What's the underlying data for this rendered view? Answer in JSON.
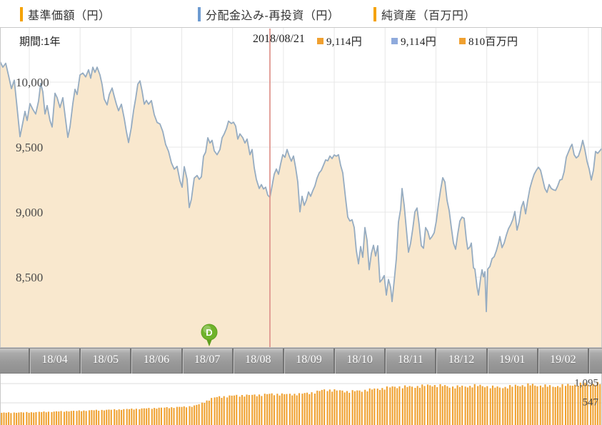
{
  "legend": {
    "items": [
      {
        "label": "基準価額（円）",
        "color": "#F5A200",
        "x": 28
      },
      {
        "label": "分配金込み-再投資（円）",
        "color": "#6D9BD1",
        "x": 277
      },
      {
        "label": "純資産（百万円）",
        "color": "#F5A200",
        "x": 523
      }
    ]
  },
  "header": {
    "period_label": "期間:1年",
    "crosshair_date": "2018/08/21",
    "tooltip_values": [
      {
        "text": "9,114円",
        "color": "#F0A030",
        "x": 444
      },
      {
        "text": "9,114円",
        "color": "#8FAADC",
        "x": 548
      },
      {
        "text": "810百万円",
        "color": "#F0A030",
        "x": 643
      }
    ]
  },
  "colors": {
    "area_fill": "#F9E8CE",
    "line": "#96ACC1",
    "crosshair": "#E09790",
    "grid": "#E7E7E7",
    "panel_border": "#C9C9C9",
    "axis_text": "#4A4A4A",
    "bar": "#F0A232",
    "marker_green": "#6FB32A"
  },
  "chart_data": [
    {
      "type": "area",
      "title": "基準価額（円）/ 分配金込み-再投資（円）",
      "ylabel": "円",
      "ylim": [
        8150,
        10350
      ],
      "yticks": [
        {
          "value": 10000,
          "label": "10,000"
        },
        {
          "value": 9500,
          "label": "9,500"
        },
        {
          "value": 9000,
          "label": "9,000"
        },
        {
          "value": 8500,
          "label": "8,500"
        }
      ],
      "x_axis_labels": [
        "18/04",
        "18/05",
        "18/06",
        "18/07",
        "18/08",
        "18/09",
        "18/10",
        "18/11",
        "18/12",
        "19/01",
        "19/02"
      ],
      "crosshair": {
        "date": "2018/08/21",
        "x": 378,
        "price_jpy": 9114,
        "reinvested_jpy": 9114,
        "net_assets_mm": 810
      },
      "event_marker": {
        "label": "D",
        "x": 293,
        "meaning": "分配金"
      },
      "grid": true,
      "points": [
        [
          0,
          10160
        ],
        [
          4,
          10115
        ],
        [
          8,
          10145
        ],
        [
          12,
          10050
        ],
        [
          16,
          9950
        ],
        [
          20,
          10015
        ],
        [
          24,
          9800
        ],
        [
          28,
          9580
        ],
        [
          32,
          9690
        ],
        [
          35,
          9775
        ],
        [
          38,
          9705
        ],
        [
          42,
          9835
        ],
        [
          46,
          9790
        ],
        [
          50,
          9755
        ],
        [
          54,
          9855
        ],
        [
          57,
          9990
        ],
        [
          60,
          9925
        ],
        [
          63,
          9755
        ],
        [
          66,
          9820
        ],
        [
          70,
          9705
        ],
        [
          73,
          9655
        ],
        [
          77,
          9915
        ],
        [
          80,
          9880
        ],
        [
          84,
          9805
        ],
        [
          88,
          9880
        ],
        [
          92,
          9705
        ],
        [
          95,
          9575
        ],
        [
          98,
          9655
        ],
        [
          102,
          9835
        ],
        [
          105,
          9945
        ],
        [
          108,
          9905
        ],
        [
          112,
          10055
        ],
        [
          116,
          10070
        ],
        [
          120,
          10040
        ],
        [
          124,
          10095
        ],
        [
          127,
          10030
        ],
        [
          130,
          10115
        ],
        [
          133,
          10075
        ],
        [
          136,
          10115
        ],
        [
          140,
          10055
        ],
        [
          143,
          9980
        ],
        [
          146,
          9870
        ],
        [
          150,
          9825
        ],
        [
          153,
          9905
        ],
        [
          157,
          9955
        ],
        [
          160,
          9890
        ],
        [
          163,
          9830
        ],
        [
          166,
          9780
        ],
        [
          170,
          9830
        ],
        [
          174,
          9720
        ],
        [
          177,
          9620
        ],
        [
          180,
          9535
        ],
        [
          184,
          9655
        ],
        [
          187,
          9780
        ],
        [
          190,
          9875
        ],
        [
          193,
          9985
        ],
        [
          196,
          10010
        ],
        [
          199,
          9930
        ],
        [
          202,
          9830
        ],
        [
          205,
          9860
        ],
        [
          208,
          9830
        ],
        [
          212,
          9858
        ],
        [
          216,
          9750
        ],
        [
          220,
          9690
        ],
        [
          224,
          9678
        ],
        [
          228,
          9620
        ],
        [
          232,
          9520
        ],
        [
          236,
          9468
        ],
        [
          240,
          9380
        ],
        [
          244,
          9330
        ],
        [
          248,
          9352
        ],
        [
          252,
          9242
        ],
        [
          255,
          9192
        ],
        [
          258,
          9350
        ],
        [
          262,
          9252
        ],
        [
          265,
          9035
        ],
        [
          268,
          9100
        ],
        [
          272,
          9262
        ],
        [
          276,
          9282
        ],
        [
          279,
          9252
        ],
        [
          282,
          9272
        ],
        [
          285,
          9430
        ],
        [
          288,
          9462
        ],
        [
          291,
          9572
        ],
        [
          294,
          9532
        ],
        [
          297,
          9552
        ],
        [
          300,
          9472
        ],
        [
          304,
          9442
        ],
        [
          308,
          9482
        ],
        [
          311,
          9572
        ],
        [
          314,
          9602
        ],
        [
          317,
          9642
        ],
        [
          320,
          9700
        ],
        [
          324,
          9682
        ],
        [
          327,
          9692
        ],
        [
          330,
          9662
        ],
        [
          333,
          9562
        ],
        [
          336,
          9602
        ],
        [
          340,
          9572
        ],
        [
          343,
          9532
        ],
        [
          346,
          9562
        ],
        [
          350,
          9442
        ],
        [
          353,
          9482
        ],
        [
          356,
          9342
        ],
        [
          359,
          9252
        ],
        [
          363,
          9182
        ],
        [
          366,
          9212
        ],
        [
          369,
          9178
        ],
        [
          372,
          9192
        ],
        [
          375,
          9130
        ],
        [
          378,
          9114
        ],
        [
          381,
          9202
        ],
        [
          384,
          9292
        ],
        [
          387,
          9332
        ],
        [
          390,
          9292
        ],
        [
          393,
          9372
        ],
        [
          396,
          9442
        ],
        [
          399,
          9422
        ],
        [
          402,
          9482
        ],
        [
          405,
          9432
        ],
        [
          408,
          9392
        ],
        [
          411,
          9432
        ],
        [
          414,
          9342
        ],
        [
          417,
          9232
        ],
        [
          420,
          9002
        ],
        [
          423,
          9122
        ],
        [
          426,
          9052
        ],
        [
          429,
          9092
        ],
        [
          432,
          9155
        ],
        [
          435,
          9122
        ],
        [
          438,
          9165
        ],
        [
          441,
          9202
        ],
        [
          444,
          9262
        ],
        [
          447,
          9302
        ],
        [
          450,
          9322
        ],
        [
          453,
          9362
        ],
        [
          456,
          9402
        ],
        [
          459,
          9395
        ],
        [
          462,
          9432
        ],
        [
          465,
          9412
        ],
        [
          468,
          9440
        ],
        [
          471,
          9430
        ],
        [
          474,
          9442
        ],
        [
          477,
          9360
        ],
        [
          480,
          9302
        ],
        [
          484,
          9102
        ],
        [
          487,
          8962
        ],
        [
          490,
          8932
        ],
        [
          493,
          8942
        ],
        [
          496,
          8882
        ],
        [
          499,
          8702
        ],
        [
          502,
          8602
        ],
        [
          505,
          8735
        ],
        [
          508,
          8652
        ],
        [
          511,
          8882
        ],
        [
          514,
          8782
        ],
        [
          517,
          8557
        ],
        [
          520,
          8682
        ],
        [
          523,
          8745
        ],
        [
          526,
          8662
        ],
        [
          529,
          8742
        ],
        [
          532,
          8462
        ],
        [
          535,
          8482
        ],
        [
          538,
          8512
        ],
        [
          541,
          8362
        ],
        [
          544,
          8482
        ],
        [
          547,
          8422
        ],
        [
          549,
          8312
        ],
        [
          552,
          8472
        ],
        [
          555,
          8642
        ],
        [
          558,
          8925
        ],
        [
          561,
          9022
        ],
        [
          563,
          9182
        ],
        [
          566,
          9052
        ],
        [
          569,
          8872
        ],
        [
          572,
          8692
        ],
        [
          575,
          8762
        ],
        [
          578,
          8872
        ],
        [
          581,
          9002
        ],
        [
          584,
          9032
        ],
        [
          587,
          8902
        ],
        [
          590,
          8742
        ],
        [
          593,
          8722
        ],
        [
          596,
          8882
        ],
        [
          599,
          8852
        ],
        [
          602,
          8792
        ],
        [
          605,
          8812
        ],
        [
          608,
          8842
        ],
        [
          611,
          8932
        ],
        [
          614,
          9062
        ],
        [
          617,
          9172
        ],
        [
          620,
          9265
        ],
        [
          623,
          9232
        ],
        [
          626,
          9092
        ],
        [
          629,
          9012
        ],
        [
          632,
          8882
        ],
        [
          635,
          8762
        ],
        [
          638,
          8715
        ],
        [
          641,
          8832
        ],
        [
          644,
          8932
        ],
        [
          647,
          8962
        ],
        [
          650,
          8952
        ],
        [
          653,
          8792
        ],
        [
          655,
          8715
        ],
        [
          658,
          8732
        ],
        [
          660,
          8762
        ],
        [
          663,
          8572
        ],
        [
          665,
          8562
        ],
        [
          668,
          8425
        ],
        [
          670,
          8362
        ],
        [
          673,
          8492
        ],
        [
          675,
          8557
        ],
        [
          677,
          8502
        ],
        [
          679,
          8542
        ],
        [
          681,
          8235
        ],
        [
          683,
          8562
        ],
        [
          686,
          8582
        ],
        [
          689,
          8642
        ],
        [
          692,
          8657
        ],
        [
          695,
          8702
        ],
        [
          698,
          8762
        ],
        [
          700,
          8812
        ],
        [
          703,
          8727
        ],
        [
          706,
          8762
        ],
        [
          709,
          8822
        ],
        [
          712,
          8872
        ],
        [
          715,
          8902
        ],
        [
          718,
          8942
        ],
        [
          721,
          9005
        ],
        [
          724,
          8862
        ],
        [
          727,
          8927
        ],
        [
          730,
          9035
        ],
        [
          733,
          9082
        ],
        [
          736,
          8987
        ],
        [
          739,
          9092
        ],
        [
          742,
          9182
        ],
        [
          745,
          9242
        ],
        [
          748,
          9292
        ],
        [
          751,
          9322
        ],
        [
          754,
          9345
        ],
        [
          757,
          9322
        ],
        [
          760,
          9252
        ],
        [
          763,
          9182
        ],
        [
          766,
          9152
        ],
        [
          769,
          9212
        ],
        [
          772,
          9182
        ],
        [
          775,
          9172
        ],
        [
          778,
          9167
        ],
        [
          781,
          9202
        ],
        [
          784,
          9247
        ],
        [
          787,
          9252
        ],
        [
          790,
          9312
        ],
        [
          793,
          9422
        ],
        [
          796,
          9462
        ],
        [
          799,
          9502
        ],
        [
          801,
          9522
        ],
        [
          804,
          9442
        ],
        [
          807,
          9417
        ],
        [
          810,
          9432
        ],
        [
          813,
          9482
        ],
        [
          816,
          9552
        ],
        [
          819,
          9482
        ],
        [
          822,
          9392
        ],
        [
          825,
          9332
        ],
        [
          828,
          9247
        ],
        [
          831,
          9322
        ],
        [
          834,
          9467
        ],
        [
          837,
          9452
        ],
        [
          840,
          9472
        ],
        [
          843,
          9492
        ]
      ]
    },
    {
      "type": "bar",
      "title": "純資産（百万円）",
      "yticks": [
        {
          "value": 1095,
          "label": "1,095"
        },
        {
          "value": 547,
          "label": "547"
        }
      ],
      "current_value_mm": 810,
      "grid": true,
      "control_points": [
        [
          0,
          265
        ],
        [
          40,
          278
        ],
        [
          80,
          302
        ],
        [
          120,
          330
        ],
        [
          160,
          355
        ],
        [
          200,
          385
        ],
        [
          230,
          410
        ],
        [
          255,
          432
        ],
        [
          270,
          458
        ],
        [
          280,
          520
        ],
        [
          288,
          600
        ],
        [
          296,
          680
        ],
        [
          305,
          715
        ],
        [
          330,
          755
        ],
        [
          360,
          770
        ],
        [
          380,
          800
        ],
        [
          400,
          788
        ],
        [
          420,
          800
        ],
        [
          440,
          850
        ],
        [
          455,
          925
        ],
        [
          470,
          898
        ],
        [
          485,
          872
        ],
        [
          500,
          882
        ],
        [
          515,
          920
        ],
        [
          530,
          948
        ],
        [
          545,
          988
        ],
        [
          560,
          1008
        ],
        [
          575,
          1000
        ],
        [
          590,
          1028
        ],
        [
          605,
          1048
        ],
        [
          620,
          1028
        ],
        [
          635,
          1000
        ],
        [
          650,
          1010
        ],
        [
          665,
          1038
        ],
        [
          680,
          1018
        ],
        [
          695,
          982
        ],
        [
          710,
          1000
        ],
        [
          725,
          1040
        ],
        [
          740,
          1058
        ],
        [
          755,
          1038
        ],
        [
          770,
          1012
        ],
        [
          785,
          1030
        ],
        [
          800,
          1058
        ],
        [
          815,
          1078
        ],
        [
          830,
          1088
        ],
        [
          843,
          1098
        ]
      ]
    }
  ]
}
